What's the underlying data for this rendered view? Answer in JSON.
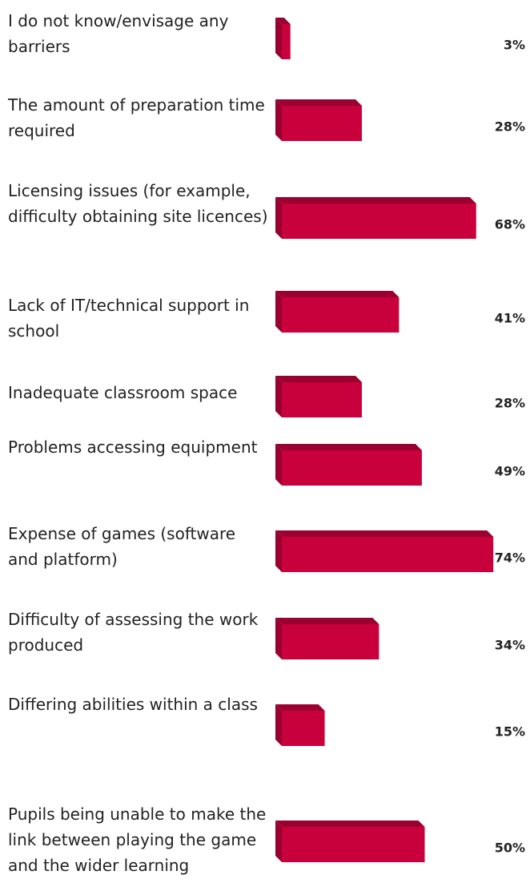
{
  "chart_data": {
    "type": "bar",
    "orientation": "horizontal",
    "color": "#c8003c",
    "categories": [
      "I do not know/envisage any barriers",
      "The amount of preparation time required",
      "Licensing issues (for example, difficulty obtaining site licences)",
      "Lack of IT/technical support in school",
      "Inadequate classroom space",
      "Problems accessing equipment",
      "Expense of games (software and platform)",
      "Difficulty of assessing the work produced",
      "Differing abilities within a class",
      "Pupils being unable to make the link between playing the game and the wider learning objectives"
    ],
    "values": [
      3,
      28,
      68,
      41,
      28,
      49,
      74,
      34,
      15,
      50
    ],
    "value_labels": [
      "3%",
      "28%",
      "68%",
      "41%",
      "28%",
      "49%",
      "74%",
      "34%",
      "15%",
      "50%"
    ]
  }
}
